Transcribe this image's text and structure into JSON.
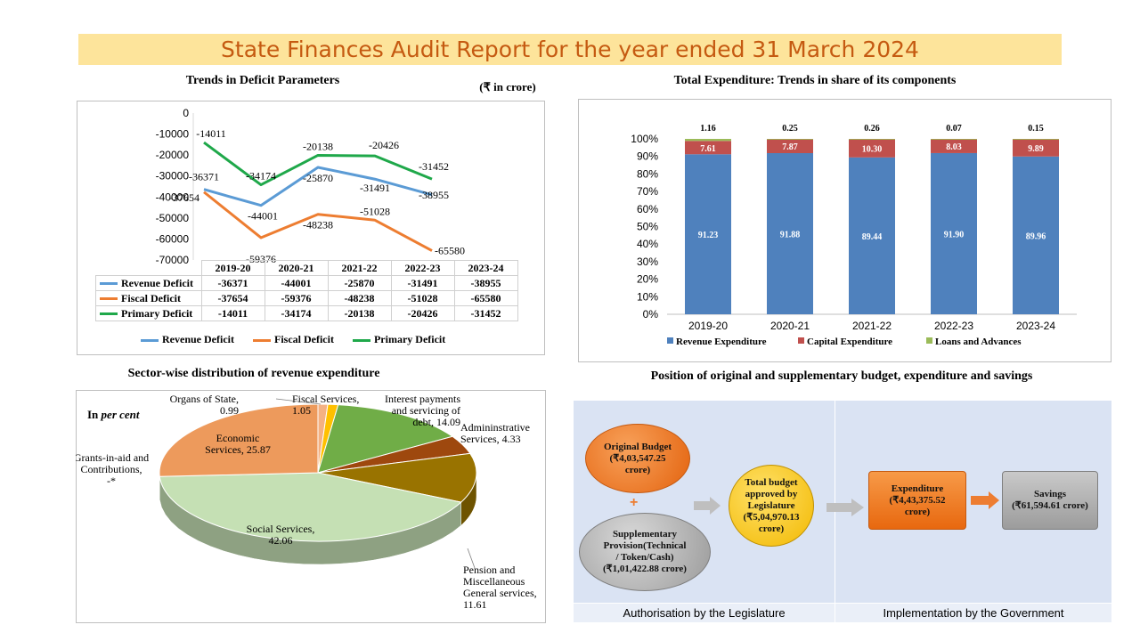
{
  "page_title": "State Finances Audit Report for the year ended 31 March 2024",
  "deficit_panel": {
    "title": "Trends in Deficit Parameters",
    "unit": "(₹ in crore)"
  },
  "expenditure_panel": {
    "title": "Total Expenditure: Trends in share of its components"
  },
  "sector_panel": {
    "title": "Sector-wise distribution of revenue expenditure",
    "unit_note_prefix": "In ",
    "unit_note_italic": "per cent"
  },
  "budget_panel": {
    "title": "Position of original and supplementary budget, expenditure and savings",
    "original_budget": [
      "Original Budget",
      "(₹4,03,547.25",
      "crore)"
    ],
    "plus_sign": "+",
    "supplementary": [
      "Supplementary",
      "Provision(Technical",
      "/ Token/Cash)",
      "(₹1,01,422.88 crore)"
    ],
    "total_budget": [
      "Total budget",
      "approved by",
      "Legislature",
      "(₹5,04,970.13",
      "crore)"
    ],
    "expenditure": [
      "Expenditure",
      "(₹4,43,375.52",
      "crore)"
    ],
    "savings": [
      "Savings",
      "(₹61,594.61 crore)"
    ],
    "footer_left": "Authorisation by the Legislature",
    "footer_right": "Implementation by the Government"
  },
  "chart_data": [
    {
      "type": "line",
      "title": "Trends in Deficit Parameters",
      "unit": "(₹ in crore)",
      "categories": [
        "2019-20",
        "2020-21",
        "2021-22",
        "2022-23",
        "2023-24"
      ],
      "ylim": [
        -70000,
        0
      ],
      "yticks": [
        0,
        -10000,
        -20000,
        -30000,
        -40000,
        -50000,
        -60000,
        -70000
      ],
      "grid": false,
      "legend": "bottom",
      "series": [
        {
          "name": "Revenue Deficit",
          "color": "#5b9bd5",
          "values": [
            -36371,
            -44001,
            -25870,
            -31491,
            -38955
          ]
        },
        {
          "name": "Fiscal Deficit",
          "color": "#ed7d31",
          "values": [
            -37654,
            -59376,
            -48238,
            -51028,
            -65580
          ]
        },
        {
          "name": "Primary Deficit",
          "color": "#1fa84a",
          "values": [
            -14011,
            -34174,
            -20138,
            -20426,
            -31452
          ]
        }
      ]
    },
    {
      "type": "bar",
      "stacked": true,
      "title": "Total Expenditure: Trends in share of its components",
      "categories": [
        "2019-20",
        "2020-21",
        "2021-22",
        "2022-23",
        "2023-24"
      ],
      "ylim": [
        0,
        100
      ],
      "yticks": [
        "0%",
        "10%",
        "20%",
        "30%",
        "40%",
        "50%",
        "60%",
        "70%",
        "80%",
        "90%",
        "100%"
      ],
      "legend": "bottom",
      "series": [
        {
          "name": "Revenue Expenditure",
          "color": "#4f81bd",
          "values": [
            91.23,
            91.88,
            89.44,
            91.9,
            89.96
          ],
          "labels": [
            "91.23",
            "91.88",
            "89.44",
            "91.90",
            "89.96"
          ]
        },
        {
          "name": "Capital Expenditure",
          "color": "#c0504d",
          "values": [
            7.61,
            7.87,
            10.3,
            8.03,
            9.89
          ],
          "labels": [
            "7.61",
            "7.87",
            "10.30",
            "8.03",
            "9.89"
          ]
        },
        {
          "name": "Loans and Advances",
          "color": "#9bbb59",
          "values": [
            1.16,
            0.25,
            0.26,
            0.07,
            0.15
          ],
          "labels": [
            "1.16",
            "0.25",
            "0.26",
            "0.07",
            "0.15"
          ]
        }
      ]
    },
    {
      "type": "pie",
      "title": "Sector-wise distribution of revenue expenditure",
      "unit": "In per cent",
      "slices": [
        {
          "name": "Organs of State",
          "value": 0.99,
          "color": "#f4b183",
          "label": [
            "Organs of State,",
            "0.99"
          ]
        },
        {
          "name": "Fiscal Services",
          "value": 1.05,
          "color": "#ffc000",
          "label": [
            "Fiscal Services,",
            "1.05"
          ]
        },
        {
          "name": "Interest payments and servicing of debt",
          "value": 14.09,
          "color": "#70ad47",
          "label": [
            "Interest payments",
            "and servicing of",
            "debt, 14.09"
          ]
        },
        {
          "name": "Admininstrative Services",
          "value": 4.33,
          "color": "#9e480e",
          "label": [
            "Admininstrative",
            "Services, 4.33"
          ]
        },
        {
          "name": "Pension and Miscellaneous General services",
          "value": 11.61,
          "color": "#997300",
          "label": [
            "Pension and",
            "Miscellaneous",
            "General services,",
            "11.61"
          ]
        },
        {
          "name": "Social Services",
          "value": 42.06,
          "color": "#c5e0b4",
          "label": [
            "Social Services,",
            "42.06"
          ]
        },
        {
          "name": "Grants-in-aid and Contributions",
          "value": 0,
          "color": "#a9d18e",
          "label": [
            "Grants-in-aid and",
            "Contributions,",
            "-*"
          ]
        },
        {
          "name": "Economic Services",
          "value": 25.87,
          "color": "#ed9a5c",
          "label": [
            "Economic",
            "Services, 25.87"
          ]
        }
      ]
    }
  ]
}
